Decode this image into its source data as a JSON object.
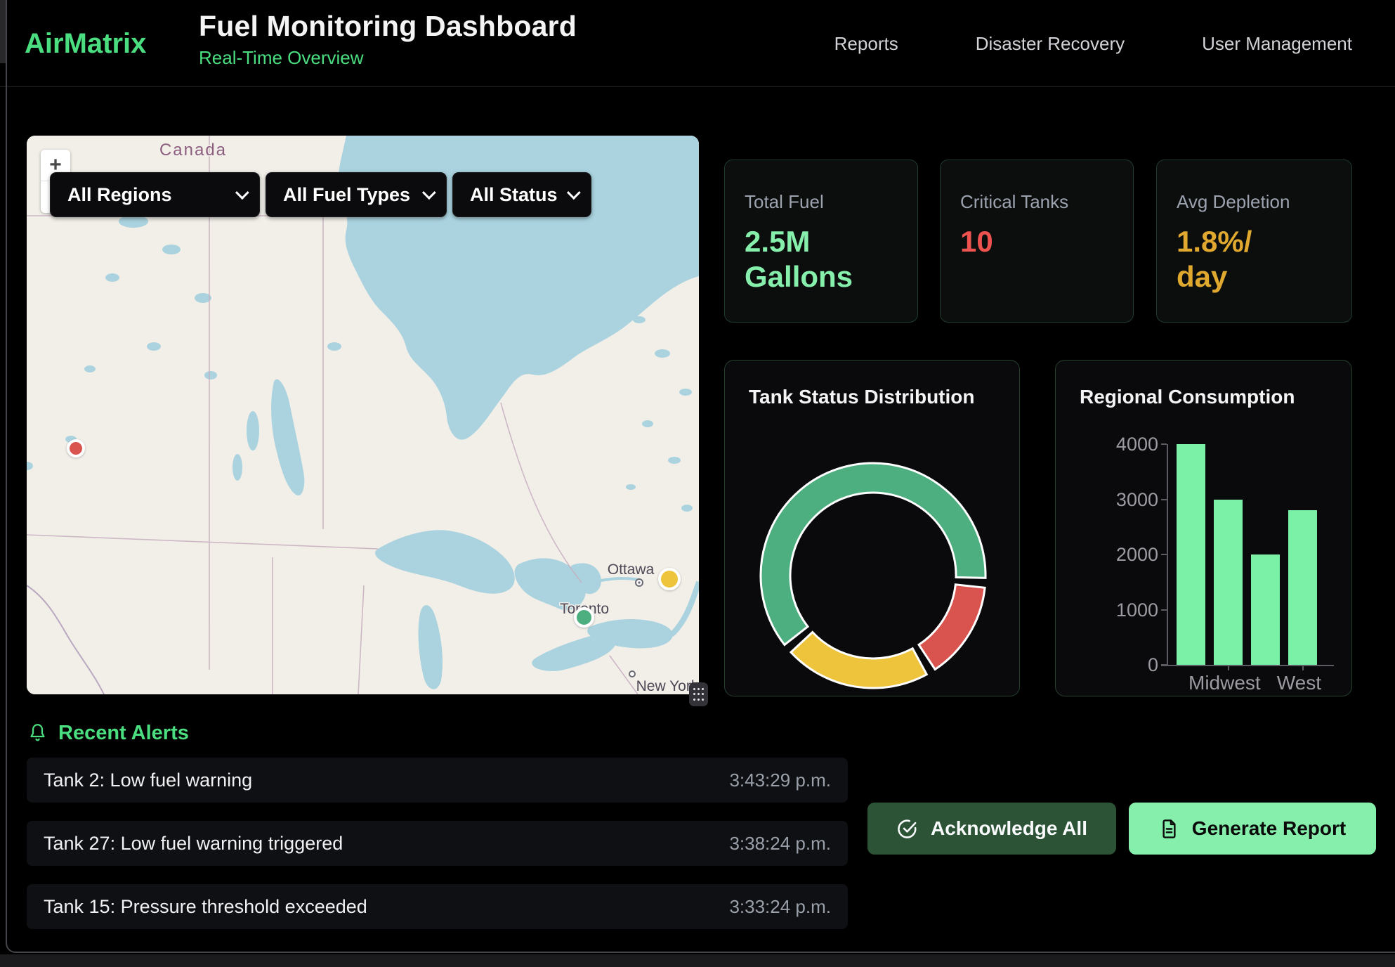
{
  "header": {
    "brand": "AirMatrix",
    "title": "Fuel Monitoring Dashboard",
    "subtitle": "Real-Time Overview",
    "nav": [
      "Reports",
      "Disaster Recovery",
      "User Management"
    ]
  },
  "map": {
    "filters": [
      "All Regions",
      "All Fuel Types",
      "All Status"
    ],
    "zoom_in_label": "+",
    "zoom_out_label": "−",
    "country_label": "Canada",
    "city_labels": [
      "Ottawa",
      "Toronto",
      "New York"
    ],
    "markers": [
      {
        "name": "red-marker",
        "color": "#d9534f"
      },
      {
        "name": "yellow-marker",
        "color": "#eec43d"
      },
      {
        "name": "green-marker",
        "color": "#4daf7f"
      }
    ]
  },
  "stats": [
    {
      "label": "Total Fuel",
      "value_lines": [
        "2.5M",
        "Gallons"
      ],
      "color": "#86efac"
    },
    {
      "label": "Critical Tanks",
      "value_lines": [
        "10"
      ],
      "color": "#ef5350"
    },
    {
      "label": "Avg Depletion",
      "value_lines": [
        "1.8%/",
        "day"
      ],
      "color": "#e0a82e"
    }
  ],
  "alerts": {
    "title": "Recent Alerts",
    "items": [
      {
        "text": "Tank 2: Low fuel warning",
        "time": "3:43:29 p.m."
      },
      {
        "text": "Tank 27: Low fuel warning triggered",
        "time": "3:38:24 p.m."
      },
      {
        "text": "Tank 15: Pressure threshold exceeded",
        "time": "3:33:24 p.m."
      }
    ]
  },
  "actions": {
    "acknowledge_all": "Acknowledge All",
    "generate_report": "Generate Report"
  },
  "colors": {
    "accent_green": "#4ade80",
    "value_green": "#86efac",
    "critical_red": "#ef5350",
    "warning_amber": "#e0a82e",
    "bar_green": "#7bf1a8"
  },
  "chart_data": [
    {
      "type": "pie",
      "subtype": "donut",
      "title": "Tank Status Distribution",
      "segments": [
        {
          "name": "green",
          "color": "#4daf7f",
          "percent": 61
        },
        {
          "name": "red",
          "color": "#d9534f",
          "percent": 14
        },
        {
          "name": "yellow",
          "color": "#eec43d",
          "percent": 21
        }
      ],
      "start_angle_deg": 232,
      "gap_deg": 5,
      "legend": false
    },
    {
      "type": "bar",
      "title": "Regional Consumption",
      "categories": [
        "",
        "Midwest",
        "",
        "West"
      ],
      "values": [
        4000,
        3000,
        2000,
        2800
      ],
      "bar_color": "#7bf1a8",
      "yticks": [
        0,
        1000,
        2000,
        3000,
        4000
      ],
      "ylim": [
        0,
        4000
      ],
      "grid": false,
      "axis_color": "#5b5b62",
      "tick_label_color": "#9b9ba1"
    }
  ]
}
